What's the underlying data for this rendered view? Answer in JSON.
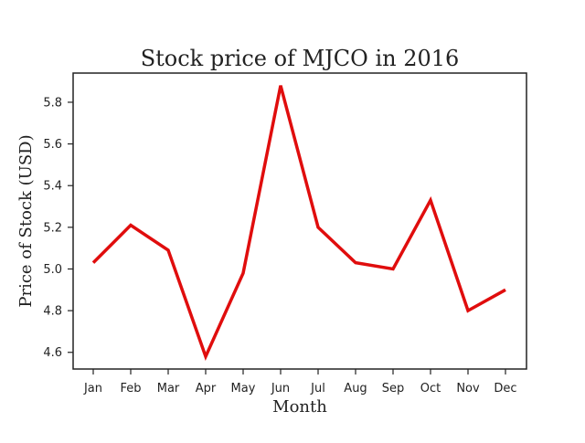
{
  "chart_data": {
    "type": "line",
    "title": "Stock price of MJCO in 2016",
    "xlabel": "Month",
    "ylabel": "Price of Stock (USD)",
    "categories": [
      "Jan",
      "Feb",
      "Mar",
      "Apr",
      "May",
      "Jun",
      "Jul",
      "Aug",
      "Sep",
      "Oct",
      "Nov",
      "Dec"
    ],
    "series": [
      {
        "values": [
          5.03,
          5.21,
          5.09,
          4.58,
          4.98,
          5.88,
          5.2,
          5.03,
          5.0,
          5.33,
          4.8,
          4.9
        ]
      }
    ],
    "ylim": [
      4.52,
      5.94
    ],
    "yticks": [
      4.6,
      4.8,
      5.0,
      5.2,
      5.4,
      5.6,
      5.8
    ],
    "ytick_labels": [
      "4.6",
      "4.8",
      "5.0",
      "5.2",
      "5.4",
      "5.6",
      "5.8"
    ],
    "grid": false,
    "line_color": "#e00d0d",
    "frame_color": "#222222"
  }
}
